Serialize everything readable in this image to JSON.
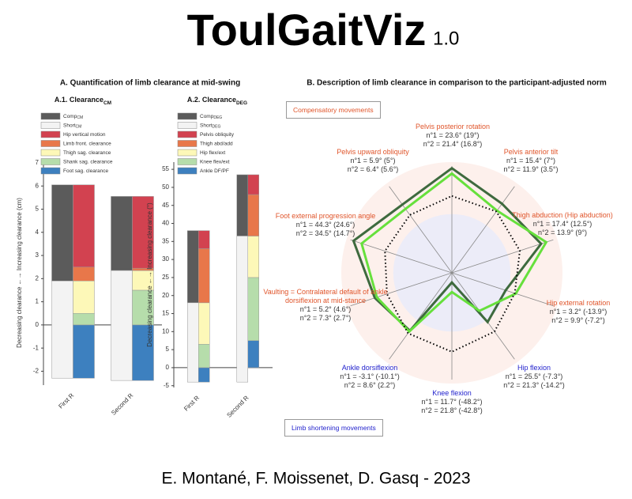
{
  "header": {
    "title": "ToulGaitViz",
    "version": "1.0"
  },
  "sections": [
    "A. Quantification of limb clearance at mid-swing",
    "B. Description of limb clearance in comparison to the participant-adjusted norm"
  ],
  "boxes": [
    "Compensatory movements",
    "Limb shortening movements"
  ],
  "footer": "E. Montané, F. Moissenet, D. Gasq - 2023",
  "chart_data": [
    {
      "type": "stacked-bar",
      "title": "A.1. Clearance",
      "title_sub": "CM",
      "ylabel": "Decreasing clearance ←→ Increasing clearance (cm)",
      "categories": [
        "First R",
        "Second R"
      ],
      "ranges": [
        {
          "name": "Comp",
          "sub": "CM",
          "color": "#5b5b5b",
          "values": [
            [
              1.9,
              6.05
            ],
            [
              2.35,
              5.55
            ]
          ]
        },
        {
          "name": "Short",
          "sub": "CM",
          "color": "#f3f3f3",
          "values": [
            [
              -2.3,
              1.9
            ],
            [
              -2.4,
              2.35
            ]
          ]
        }
      ],
      "series": [
        {
          "name": "Hip vertical motion",
          "color": "#d24250",
          "values": [
            3.55,
            3.1
          ]
        },
        {
          "name": "Limb front. clearance",
          "color": "#e8774a",
          "values": [
            0.6,
            0.1
          ]
        },
        {
          "name": "Thigh sag. clearance",
          "color": "#fdf8b8",
          "values": [
            1.4,
            0.85
          ]
        },
        {
          "name": "Shank sag. clearance",
          "color": "#b6ddab",
          "values": [
            0.5,
            1.5
          ]
        },
        {
          "name": "Foot sag. clearance",
          "color": "#3d80bf",
          "values": [
            -2.3,
            -2.4
          ]
        }
      ],
      "ylim": [
        -2.6,
        7.1
      ],
      "yticks": [
        -2,
        -1,
        0,
        1,
        2,
        3,
        4,
        5,
        6,
        7
      ]
    },
    {
      "type": "stacked-bar",
      "title": "A.2. Clearance",
      "title_sub": "DEG",
      "ylabel": "Decreasing clearance ←→ Increasing clearance (°)",
      "categories": [
        "First R",
        "Second R"
      ],
      "ranges": [
        {
          "name": "Comp",
          "sub": "DEG",
          "color": "#5b5b5b",
          "values": [
            [
              18,
              38
            ],
            [
              36.5,
              53.5
            ]
          ]
        },
        {
          "name": "Short",
          "sub": "DEG",
          "color": "#f3f3f3",
          "values": [
            [
              -4,
              18
            ],
            [
              -4,
              36.5
            ]
          ]
        }
      ],
      "series": [
        {
          "name": "Pelvis obliquity",
          "color": "#d24250",
          "values": [
            5,
            5.5
          ]
        },
        {
          "name": "Thigh abd/add",
          "color": "#e8774a",
          "values": [
            15,
            11.5
          ]
        },
        {
          "name": "Hip flex/ext",
          "color": "#fdf8b8",
          "values": [
            11.5,
            11.5
          ]
        },
        {
          "name": "Knee flex/ext",
          "color": "#b6ddab",
          "values": [
            6.5,
            17.5
          ]
        },
        {
          "name": "Ankle DF/PF",
          "color": "#3d80bf",
          "values": [
            -4,
            7.5
          ]
        }
      ],
      "ylim": [
        -5.5,
        57
      ],
      "yticks": [
        -5,
        0,
        5,
        10,
        15,
        20,
        25,
        30,
        35,
        40,
        45,
        50,
        55
      ]
    },
    {
      "type": "radar",
      "categories": [
        "Pelvis posterior rotation",
        "Pelvis anterior tilt",
        "Thigh abduction (Hip abduction)",
        "Hip external rotation",
        "Hip flexion",
        "Knee flexion",
        "Ankle dorsiflexion",
        "Vaulting = Contralateral default of ankle dorsiflexion at mid-stance",
        "Foot external progression angle",
        "Pelvis upward obliquity"
      ],
      "category_colors": [
        "#e0552b",
        "#e0552b",
        "#e0552b",
        "#e0552b",
        "#1f1fcc",
        "#1f1fcc",
        "#1f1fcc",
        "#e0552b",
        "#e0552b",
        "#e0552b"
      ],
      "details": [
        [
          "n°1 = 23.6° (19°)",
          "n°2 = 21.4° (16.8°)"
        ],
        [
          "n°1 = 15.4° (7°)",
          "n°2 = 11.9° (3.5°)"
        ],
        [
          "n°1 = 17.4° (12.5°)",
          "n°2 = 13.9° (9°)"
        ],
        [
          "n°1 = 3.2° (-13.9°)",
          "n°2 = 9.9° (-7.2°)"
        ],
        [
          "n°1 = 25.5° (-7.3°)",
          "n°2 = 21.3° (-14.2°)"
        ],
        [
          "n°1 = 11.7° (-48.2°)",
          "n°2 = 21.8° (-42.8°)"
        ],
        [
          "n°1 = -3.1° (-10.1°)",
          "n°2 = 8.6° (2.2°)"
        ],
        [
          "n°1 = 5.2° (4.6°)",
          "n°2 = 7.3° (2.7°)"
        ],
        [
          "n°1 = 44.3° (24.6°)",
          "n°2 = 34.5° (14.7°)"
        ],
        [
          "n°1 = 5.9° (5°)",
          "n°2 = 6.4° (5.6°)"
        ]
      ],
      "series": [
        {
          "color": "#3e6a3e",
          "values": [
            98,
            80,
            88,
            53,
            57,
            9,
            67,
            76,
            97,
            79
          ]
        },
        {
          "color": "#66e03c",
          "values": [
            93,
            72,
            93,
            63,
            44,
            18,
            68,
            74,
            89,
            74
          ]
        },
        {
          "color": "#000000",
          "dashed": true,
          "values": [
            72,
            71,
            67,
            62,
            68,
            74,
            70,
            64,
            66,
            67
          ]
        }
      ],
      "rlim": [
        0,
        100
      ]
    }
  ]
}
